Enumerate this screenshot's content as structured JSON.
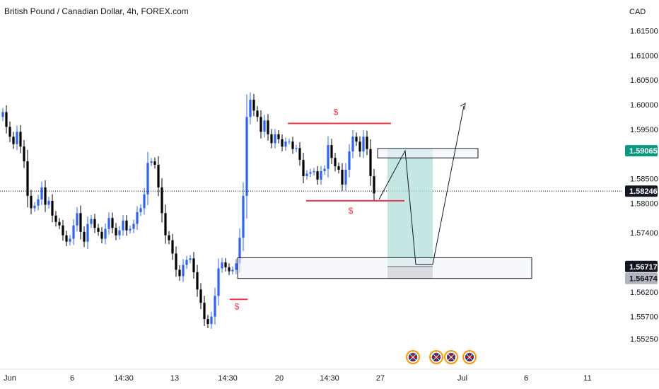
{
  "header": {
    "title": "British Pound / Canadian Dollar, 4h, FOREX.com"
  },
  "chart_data": {
    "type": "candlestick",
    "currency_label": "CAD",
    "y_ticks": [
      1.615,
      1.61,
      1.605,
      1.6,
      1.595,
      1.585,
      1.58,
      1.574,
      1.562,
      1.557,
      1.5525
    ],
    "y_tick_labels": [
      "1.61500",
      "1.61000",
      "1.60500",
      "1.60000",
      "1.59500",
      "1.58500",
      "1.58000",
      "1.57400",
      "1.56200",
      "1.55700",
      "1.55250"
    ],
    "x_tick_labels": [
      "Jun",
      "6",
      "14:30",
      "13",
      "14:30",
      "20",
      "14:30",
      "27",
      "Jul",
      "6",
      "11"
    ],
    "price_badges": [
      {
        "label": "1.59065",
        "value": 1.59065,
        "color": "#089981",
        "text_color": "#ffffff"
      },
      {
        "label": "1.58246",
        "value": 1.58246,
        "color": "#131722",
        "text_color": "#ffffff"
      },
      {
        "label": "1.56717",
        "value": 1.56717,
        "color": "#131722",
        "text_color": "#ffffff"
      },
      {
        "label": "1.56474",
        "value": 1.56474,
        "color": "#b2b5be",
        "text_color": "#131722"
      }
    ],
    "current_price": 1.58246,
    "candle_colors": {
      "up": "#2962ff",
      "down": "#000000"
    },
    "candles_close": [
      1.5985,
      1.5955,
      1.5935,
      1.592,
      1.5945,
      1.5915,
      1.5885,
      1.5815,
      1.579,
      1.5795,
      1.5808,
      1.5832,
      1.5797,
      1.5805,
      1.5775,
      1.5762,
      1.5755,
      1.5735,
      1.5722,
      1.5728,
      1.5755,
      1.578,
      1.5742,
      1.5722,
      1.5758,
      1.5768,
      1.575,
      1.5742,
      1.5728,
      1.5748,
      1.577,
      1.575,
      1.5735,
      1.5745,
      1.5765,
      1.5745,
      1.5748,
      1.5758,
      1.5782,
      1.579,
      1.5818,
      1.5882,
      1.5885,
      1.5878,
      1.5832,
      1.578,
      1.5735,
      1.5725,
      1.5698,
      1.5665,
      1.5652,
      1.5675,
      1.5685,
      1.5688,
      1.566,
      1.5625,
      1.5598,
      1.5565,
      1.5555,
      1.557,
      1.5612,
      1.5668,
      1.568,
      1.567,
      1.5662,
      1.5665,
      1.5678,
      1.573,
      1.5815,
      1.5975,
      1.601,
      1.5988,
      1.5975,
      1.5945,
      1.5968,
      1.594,
      1.5922,
      1.594,
      1.593,
      1.5915,
      1.5925,
      1.5925,
      1.591,
      1.5912,
      1.5888,
      1.5855,
      1.586,
      1.5863,
      1.5865,
      1.5848,
      1.5865,
      1.587,
      1.5918,
      1.5892,
      1.5875,
      1.5868,
      1.5838,
      1.5868,
      1.5905,
      1.5935,
      1.5925,
      1.5905,
      1.5935,
      1.591,
      1.5855,
      1.582
    ],
    "zones": [
      {
        "type": "resistance-zone",
        "top": 1.5911,
        "bottom": 1.5892
      },
      {
        "type": "support-zone",
        "top": 1.56895,
        "bottom": 1.56474
      }
    ],
    "position": {
      "entry": 1.56717,
      "target": 1.5911,
      "stop": 1.56474
    },
    "horizontal_lines": [
      {
        "level": 1.5962,
        "label": "$"
      },
      {
        "level": 1.5805,
        "label": "$"
      },
      {
        "level": 1.5605,
        "label": "$"
      }
    ],
    "event_flags": [
      "uk-flag-event",
      "uk-flag-event",
      "uk-flag-event",
      "uk-flag-event"
    ]
  }
}
